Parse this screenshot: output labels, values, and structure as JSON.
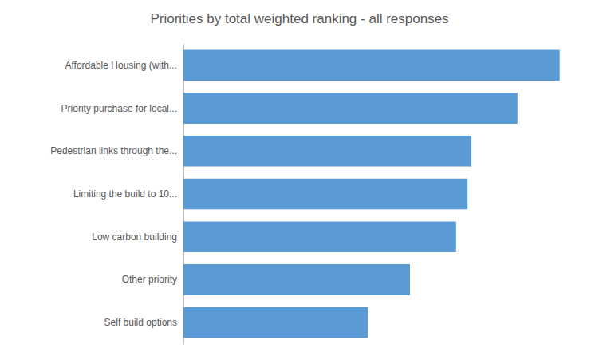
{
  "chart_data": {
    "type": "bar",
    "title": "Priorities by total weighted ranking - all responses",
    "categories": [
      "Affordable Housing (with...",
      "Priority purchase for local...",
      "Pedestrian links through the...",
      "Limiting the build to 10...",
      "Low carbon building",
      "Other priority",
      "Self build options"
    ],
    "values": [
      490,
      435,
      375,
      370,
      355,
      295,
      240
    ],
    "color": "#5b9bd5",
    "orientation": "horizontal",
    "xlim": [
      0,
      510
    ],
    "grid": false,
    "tick_labels": "y"
  }
}
